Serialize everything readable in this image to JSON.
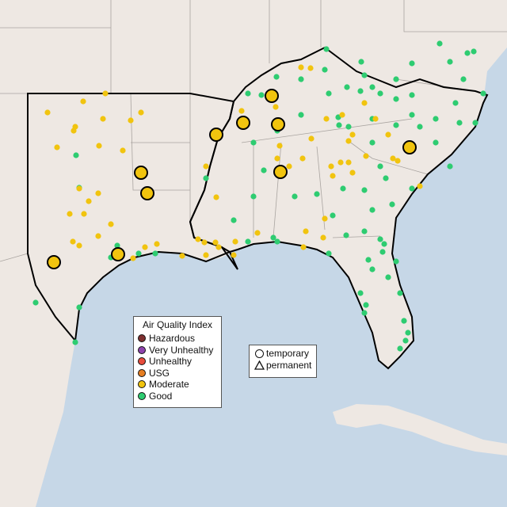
{
  "legend_aqi": {
    "title": "Air Quality Index",
    "items": [
      {
        "label": "Hazardous",
        "color": "#7e2f2f"
      },
      {
        "label": "Very Unhealthy",
        "color": "#8e44ad"
      },
      {
        "label": "Unhealthy",
        "color": "#e74c3c"
      },
      {
        "label": "USG",
        "color": "#e67e22"
      },
      {
        "label": "Moderate",
        "color": "#f1c40f"
      },
      {
        "label": "Good",
        "color": "#2ecc71"
      }
    ]
  },
  "legend_type": {
    "items": [
      {
        "label": "temporary",
        "symbol": "circle"
      },
      {
        "label": "permanent",
        "symbol": "triangle"
      }
    ]
  },
  "colors": {
    "land": "#eee8e3",
    "water": "#c6d7e7",
    "region_outline": "#000000"
  }
}
